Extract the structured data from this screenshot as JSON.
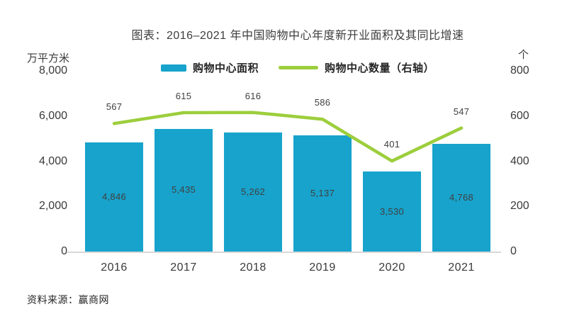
{
  "figure": {
    "source_note": "资料来源：赢商网"
  },
  "chart_data": {
    "type": "bar",
    "combo": "bar + line (secondary axis)",
    "title": "图表：2016–2021 年中国购物中心年度新开业面积及其同比增速",
    "categories": [
      "2016",
      "2017",
      "2018",
      "2019",
      "2020",
      "2021"
    ],
    "series": [
      {
        "name": "购物中心面积",
        "type": "bar",
        "axis": "left",
        "values": [
          4846,
          5435,
          5262,
          5137,
          3530,
          4768
        ],
        "labels": [
          "4,846",
          "5,435",
          "5,262",
          "5,137",
          "3,530",
          "4,768"
        ],
        "color": "#17a3cc"
      },
      {
        "name": "购物中心数量（右轴）",
        "type": "line",
        "axis": "right",
        "values": [
          567,
          615,
          616,
          586,
          401,
          547
        ],
        "labels": [
          "567",
          "615",
          "616",
          "586",
          "401",
          "547"
        ],
        "color": "#9cce3c"
      }
    ],
    "left_axis": {
      "unit": "万平方米",
      "min": 0,
      "max": 8000,
      "ticks": [
        "8,000",
        "6,000",
        "4,000",
        "2,000",
        "0"
      ]
    },
    "right_axis": {
      "unit": "个",
      "min": 0,
      "max": 800,
      "ticks": [
        "800",
        "600",
        "400",
        "200",
        "0"
      ]
    },
    "grid": false,
    "legend_position": "top",
    "colors": {
      "bar": "#17a3cc",
      "line": "#9cce3c",
      "axis_line": "#d8d8d8",
      "label_text": "#404040"
    },
    "source": "资料来源：赢商网"
  }
}
